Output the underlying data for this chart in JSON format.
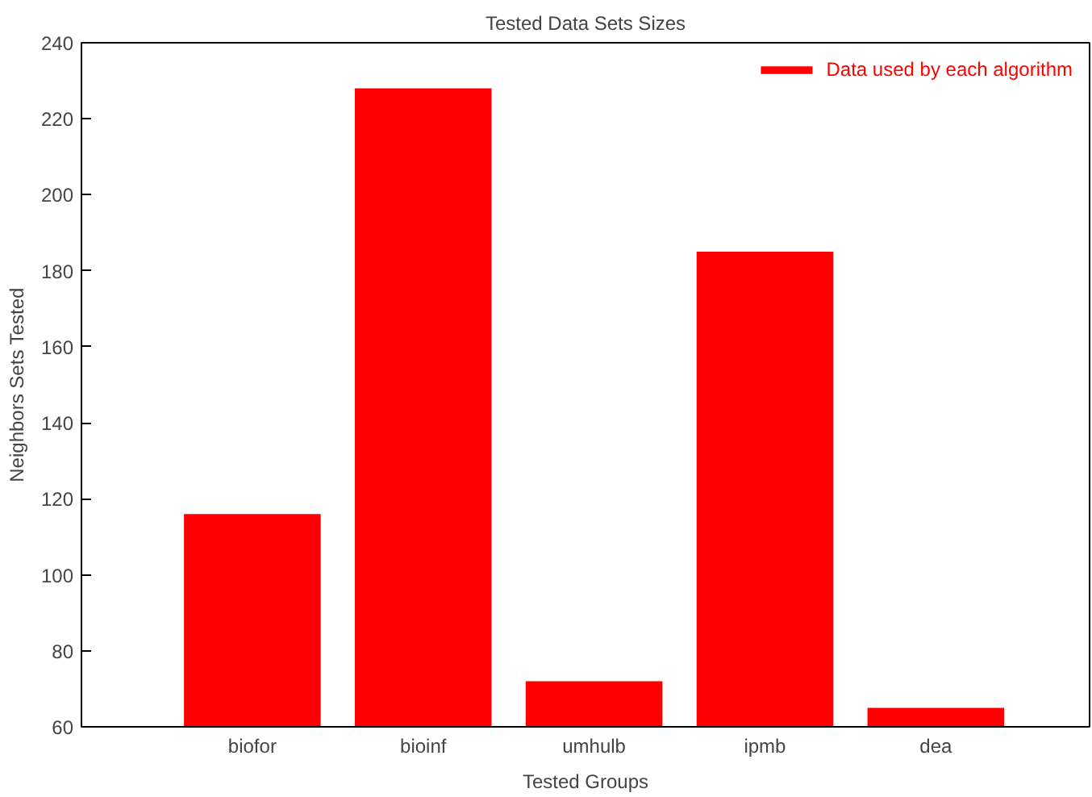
{
  "chart_data": {
    "type": "bar",
    "title": "Tested Data Sets Sizes",
    "xlabel": "Tested Groups",
    "ylabel": "Neighbors Sets Tested",
    "categories": [
      "biofor",
      "bioinf",
      "umhulb",
      "ipmb",
      "dea"
    ],
    "series": [
      {
        "name": "Data used by each algorithm",
        "color": "#ff0000",
        "values": [
          116,
          228,
          72,
          185,
          65
        ]
      }
    ],
    "ylim": [
      60,
      240
    ],
    "yticks": [
      60,
      80,
      100,
      120,
      140,
      160,
      180,
      200,
      220,
      240
    ],
    "grid": false,
    "legend": "top right"
  }
}
